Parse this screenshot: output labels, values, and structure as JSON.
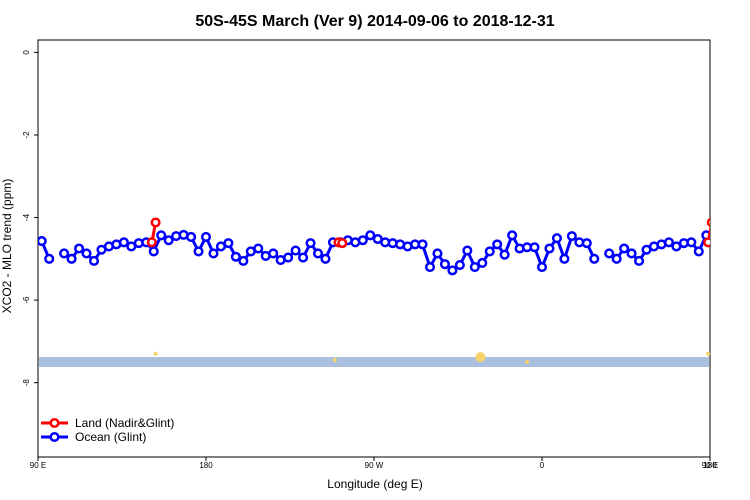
{
  "chart_data": {
    "type": "line",
    "title": "50S-45S March (Ver 9)   2014-09-06 to 2018-12-31",
    "xlabel": "Longitude (deg E)",
    "ylabel": "XCO2 - MLO trend (ppm)",
    "xlim": [
      90,
      450
    ],
    "ylim": [
      -9.8,
      0.3
    ],
    "x_ticks": [
      {
        "value": 90,
        "label": "90 E"
      },
      {
        "value": 180,
        "label": "180"
      },
      {
        "value": 270,
        "label": "90 W"
      },
      {
        "value": 360,
        "label": "0"
      },
      {
        "value": 450,
        "label": "90 E"
      },
      {
        "value": 540,
        "label": "180"
      }
    ],
    "y_ticks": [
      {
        "value": 0,
        "label": "0"
      },
      {
        "value": -2,
        "label": "-2"
      },
      {
        "value": -4,
        "label": "-4"
      },
      {
        "value": -6,
        "label": "-6"
      },
      {
        "value": -8,
        "label": "-8"
      }
    ],
    "grid": false,
    "legend_position": "bottom-left",
    "band": {
      "y_from": -7.62,
      "y_to": -7.38,
      "color": "#a9bfdd"
    },
    "series": [
      {
        "name": "Land (Nadir&Glint)",
        "color": "#ff0000",
        "segments": [
          [
            [
              151,
              -4.6
            ],
            [
              153,
              -4.12
            ]
          ],
          [
            [
              251,
              -4.6
            ],
            [
              253,
              -4.62
            ]
          ],
          [
            [
              449,
              -4.6
            ],
            [
              451,
              -4.12
            ]
          ]
        ]
      },
      {
        "name": "Ocean (Glint)",
        "color": "#0000ff",
        "segments": [
          [
            [
              92,
              -4.57
            ],
            [
              96,
              -5.0
            ]
          ],
          [
            [
              104,
              -4.87
            ],
            [
              108,
              -5.0
            ],
            [
              112,
              -4.75
            ],
            [
              116,
              -4.87
            ],
            [
              120,
              -5.05
            ],
            [
              124,
              -4.78
            ],
            [
              128,
              -4.7
            ],
            [
              132,
              -4.65
            ],
            [
              136,
              -4.6
            ],
            [
              140,
              -4.7
            ],
            [
              144,
              -4.62
            ],
            [
              148,
              -4.6
            ],
            [
              152,
              -4.82
            ],
            [
              156,
              -4.43
            ],
            [
              160,
              -4.55
            ],
            [
              164,
              -4.45
            ],
            [
              168,
              -4.42
            ],
            [
              172,
              -4.47
            ],
            [
              176,
              -4.82
            ],
            [
              180,
              -4.47
            ],
            [
              184,
              -4.87
            ],
            [
              188,
              -4.7
            ],
            [
              192,
              -4.62
            ],
            [
              196,
              -4.95
            ],
            [
              200,
              -5.05
            ],
            [
              204,
              -4.82
            ],
            [
              208,
              -4.75
            ],
            [
              212,
              -4.93
            ],
            [
              216,
              -4.87
            ],
            [
              220,
              -5.03
            ],
            [
              224,
              -4.97
            ],
            [
              228,
              -4.8
            ],
            [
              232,
              -4.97
            ],
            [
              236,
              -4.62
            ],
            [
              240,
              -4.87
            ],
            [
              244,
              -5.0
            ],
            [
              248,
              -4.6
            ],
            [
              252,
              -4.6
            ],
            [
              256,
              -4.55
            ],
            [
              260,
              -4.6
            ],
            [
              264,
              -4.55
            ],
            [
              268,
              -4.43
            ],
            [
              272,
              -4.52
            ],
            [
              276,
              -4.6
            ],
            [
              280,
              -4.62
            ],
            [
              284,
              -4.65
            ],
            [
              288,
              -4.7
            ],
            [
              292,
              -4.65
            ],
            [
              296,
              -4.65
            ],
            [
              300,
              -5.2
            ],
            [
              304,
              -4.87
            ],
            [
              308,
              -5.13
            ],
            [
              312,
              -5.28
            ],
            [
              316,
              -5.15
            ],
            [
              320,
              -4.8
            ],
            [
              324,
              -5.2
            ],
            [
              328,
              -5.1
            ],
            [
              332,
              -4.82
            ],
            [
              336,
              -4.65
            ],
            [
              340,
              -4.9
            ],
            [
              344,
              -4.43
            ],
            [
              348,
              -4.75
            ],
            [
              352,
              -4.72
            ],
            [
              356,
              -4.72
            ],
            [
              360,
              -5.2
            ],
            [
              364,
              -4.75
            ],
            [
              368,
              -4.5
            ],
            [
              372,
              -5.0
            ],
            [
              376,
              -4.45
            ],
            [
              380,
              -4.6
            ],
            [
              384,
              -4.62
            ],
            [
              388,
              -5.0
            ]
          ],
          [
            [
              396,
              -4.87
            ],
            [
              400,
              -5.0
            ],
            [
              404,
              -4.75
            ],
            [
              408,
              -4.87
            ],
            [
              412,
              -5.05
            ],
            [
              416,
              -4.78
            ],
            [
              420,
              -4.7
            ],
            [
              424,
              -4.65
            ],
            [
              428,
              -4.6
            ],
            [
              432,
              -4.7
            ],
            [
              436,
              -4.62
            ],
            [
              440,
              -4.6
            ],
            [
              444,
              -4.82
            ],
            [
              448,
              -4.43
            ],
            [
              452,
              -4.55
            ]
          ]
        ]
      }
    ],
    "scatter_marks": [
      {
        "x": 153,
        "y": -7.3
      },
      {
        "x": 249,
        "y": -7.45
      },
      {
        "x": 327,
        "y": -7.38
      },
      {
        "x": 352,
        "y": -7.5
      },
      {
        "x": 449,
        "y": -7.3
      }
    ],
    "scatter_color": "#f6d36b"
  }
}
